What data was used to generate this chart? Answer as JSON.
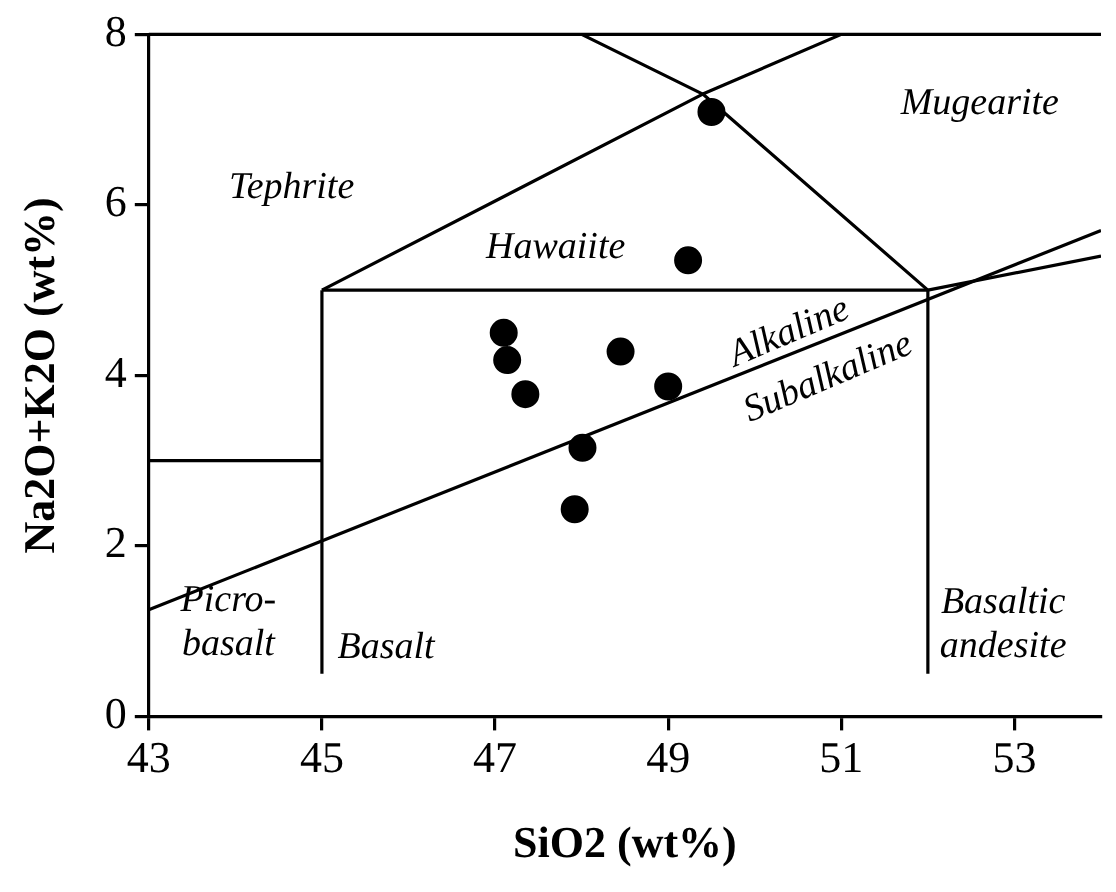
{
  "chart_data": {
    "type": "scatter",
    "xlabel": "SiO2 (wt%)",
    "ylabel": "Na2O+K2O (wt%)",
    "xlim": [
      43,
      54
    ],
    "ylim": [
      0,
      8
    ],
    "xticks": [
      43,
      45,
      47,
      49,
      51,
      53
    ],
    "yticks": [
      0,
      2,
      4,
      6,
      8
    ],
    "grid": false,
    "series": [
      {
        "color": "#000000",
        "marker": "circle",
        "x": [
          49.5,
          49.23,
          47.1,
          47.14,
          47.35,
          48.45,
          49.0,
          48.01,
          47.92
        ],
        "values": [
          7.09,
          5.35,
          4.5,
          4.18,
          3.78,
          4.28,
          3.87,
          3.15,
          2.43
        ]
      },
      {
        "type": "line",
        "marker": "none",
        "color": "#000000",
        "x": [
          43,
          45
        ],
        "values": [
          3,
          3
        ]
      },
      {
        "type": "line",
        "marker": "none",
        "color": "#000000",
        "x": [
          45,
          45
        ],
        "values": [
          0.5,
          5
        ]
      },
      {
        "type": "line",
        "marker": "none",
        "color": "#000000",
        "x": [
          45,
          52,
          54
        ],
        "values": [
          5,
          5,
          5.4
        ]
      },
      {
        "type": "line",
        "marker": "none",
        "color": "#000000",
        "x": [
          52,
          52
        ],
        "values": [
          0.5,
          5
        ]
      },
      {
        "type": "line",
        "marker": "none",
        "color": "#000000",
        "x": [
          45,
          49.4,
          51
        ],
        "values": [
          5,
          7.3,
          8
        ]
      },
      {
        "type": "line",
        "marker": "none",
        "color": "#000000",
        "x": [
          52,
          49.4,
          48
        ],
        "values": [
          5,
          7.3,
          8
        ]
      },
      {
        "type": "line",
        "marker": "none",
        "color": "#000000",
        "x": [
          43,
          54
        ],
        "values": [
          1.25,
          5.7
        ]
      }
    ],
    "annotations": [
      "Tephrite",
      "Hawaiite",
      "Mugearite",
      "Alkaline",
      "Subalkaline",
      "Picro-\nbasalt",
      "Basalt",
      "Basaltic\nandesite"
    ]
  }
}
